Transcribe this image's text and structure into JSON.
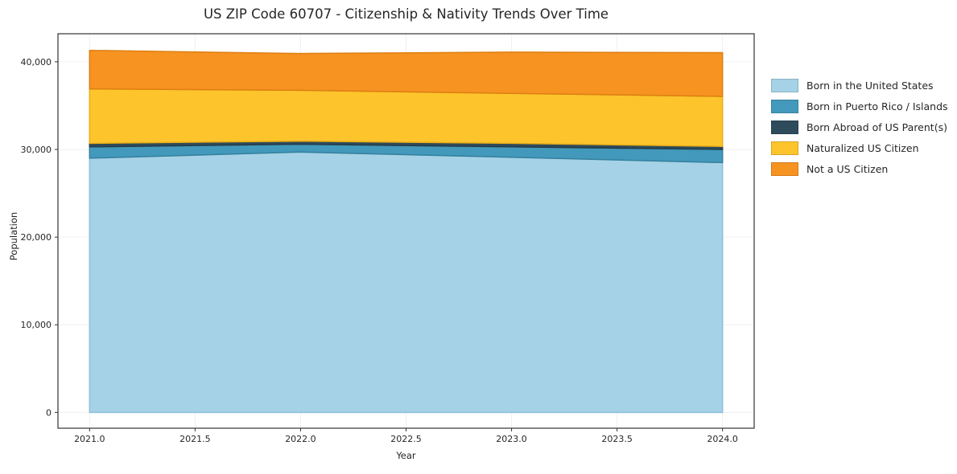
{
  "title": "US ZIP Code 60707 - Citizenship & Nativity Trends Over Time",
  "chart_data": {
    "type": "area",
    "stacked": true,
    "title": "US ZIP Code 60707 - Citizenship & Nativity Trends Over Time",
    "xlabel": "Year",
    "ylabel": "Population",
    "x": [
      2021,
      2022,
      2023,
      2024
    ],
    "series": [
      {
        "name": "Born in the United States",
        "color": "#a5d2e6",
        "edge": "#8cc0db",
        "values": [
          29000,
          29700,
          29100,
          28500
        ]
      },
      {
        "name": "Born in Puerto Rico / Islands",
        "color": "#4299bb",
        "edge": "#35809e",
        "values": [
          1300,
          900,
          1200,
          1500
        ]
      },
      {
        "name": "Born Abroad of US Parent(s)",
        "color": "#2e4b5c",
        "edge": "#253d4b",
        "values": [
          400,
          350,
          400,
          350
        ]
      },
      {
        "name": "Naturalized US Citizen",
        "color": "#fdc42c",
        "edge": "#e8ae17",
        "values": [
          6200,
          5800,
          5700,
          5700
        ]
      },
      {
        "name": "Not a US Citizen",
        "color": "#f79321",
        "edge": "#dd7f12",
        "values": [
          4400,
          4200,
          4700,
          5000
        ]
      }
    ],
    "xlim": [
      2020.85,
      2024.15
    ],
    "ylim": [
      -1800,
      43200
    ],
    "xticks": {
      "values": [
        2021.0,
        2021.5,
        2022.0,
        2022.5,
        2023.0,
        2023.5,
        2024.0
      ],
      "labels": [
        "2021.0",
        "2021.5",
        "2022.0",
        "2022.5",
        "2023.0",
        "2023.5",
        "2024.0"
      ]
    },
    "yticks": {
      "values": [
        0,
        10000,
        20000,
        30000,
        40000
      ],
      "labels": [
        "0",
        "10,000",
        "20,000",
        "30,000",
        "40,000"
      ]
    },
    "grid": true,
    "legend_position": "right"
  }
}
